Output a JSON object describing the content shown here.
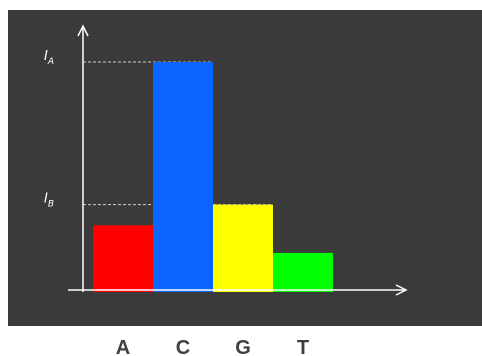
{
  "chart_data": {
    "type": "bar",
    "categories": [
      "A",
      "C",
      "G",
      "T"
    ],
    "values": [
      0.29,
      1.0,
      0.38,
      0.17
    ],
    "colors": [
      "#ff0000",
      "#0a64ff",
      "#ffff00",
      "#00ff00"
    ],
    "background": "#3a3a3a",
    "axis_color": "#ffffff",
    "reference_lines": [
      {
        "main": "I",
        "sub": "A",
        "value": 1.0
      },
      {
        "main": "I",
        "sub": "B",
        "value": 0.38
      }
    ],
    "ylim": [
      0,
      1.04
    ],
    "grid": false,
    "title": "",
    "xlabel": "",
    "ylabel": ""
  }
}
